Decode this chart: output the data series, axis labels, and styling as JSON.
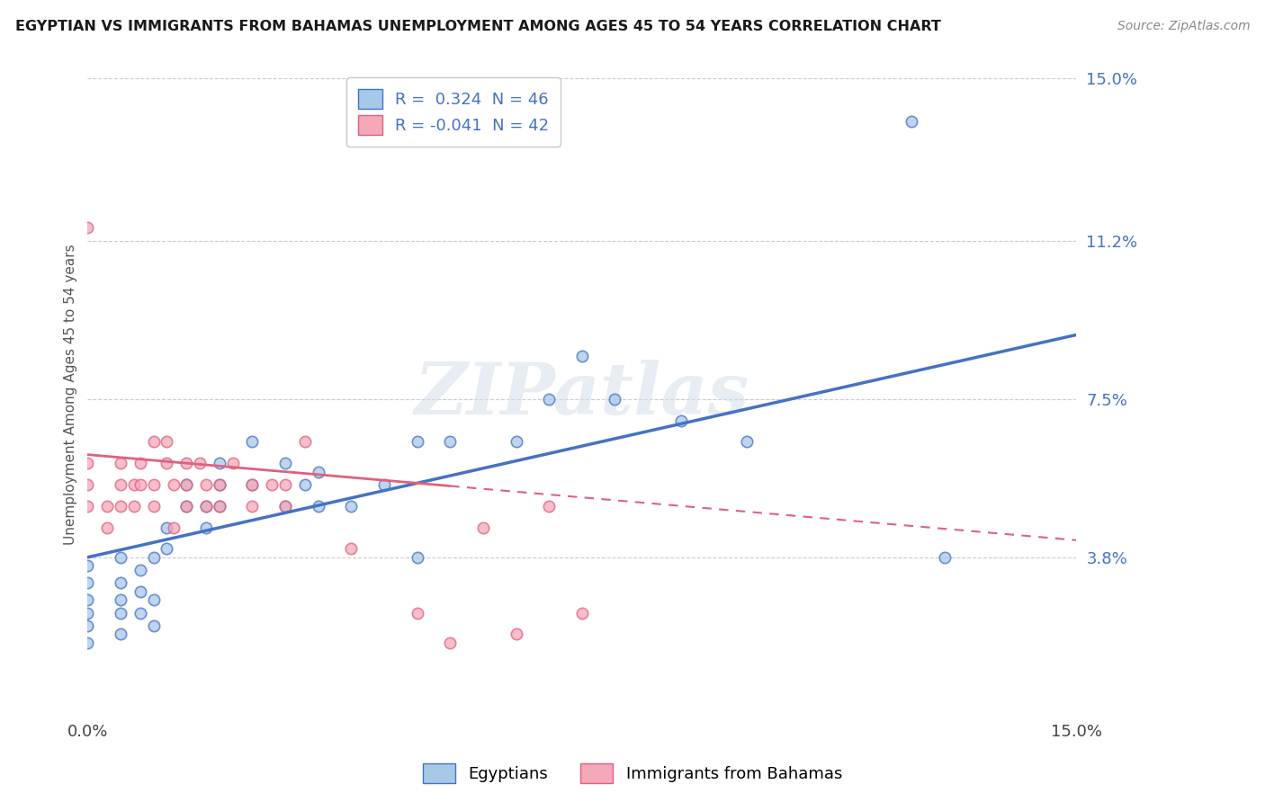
{
  "title": "EGYPTIAN VS IMMIGRANTS FROM BAHAMAS UNEMPLOYMENT AMONG AGES 45 TO 54 YEARS CORRELATION CHART",
  "source": "Source: ZipAtlas.com",
  "ylabel": "Unemployment Among Ages 45 to 54 years",
  "xmin": 0.0,
  "xmax": 0.15,
  "ymin": 0.0,
  "ymax": 0.15,
  "yticks": [
    0.038,
    0.075,
    0.112,
    0.15
  ],
  "ytick_labels": [
    "3.8%",
    "7.5%",
    "11.2%",
    "15.0%"
  ],
  "xticks": [
    0.0,
    0.15
  ],
  "xtick_labels": [
    "0.0%",
    "15.0%"
  ],
  "legend_labels": [
    "Egyptians",
    "Immigrants from Bahamas"
  ],
  "legend_r_values": [
    "R =  0.324  N = 46",
    "R = -0.041  N = 42"
  ],
  "blue_color": "#a8c8e8",
  "pink_color": "#f4a8b8",
  "blue_line_color": "#4472c4",
  "pink_line_color": "#e06080",
  "watermark_text": "ZIPatlas",
  "blue_scatter_x": [
    0.0,
    0.0,
    0.0,
    0.0,
    0.0,
    0.0,
    0.005,
    0.005,
    0.005,
    0.005,
    0.005,
    0.008,
    0.008,
    0.008,
    0.01,
    0.01,
    0.01,
    0.012,
    0.012,
    0.015,
    0.015,
    0.018,
    0.018,
    0.02,
    0.02,
    0.02,
    0.025,
    0.025,
    0.03,
    0.03,
    0.033,
    0.035,
    0.035,
    0.04,
    0.045,
    0.05,
    0.05,
    0.055,
    0.065,
    0.07,
    0.075,
    0.08,
    0.09,
    0.1,
    0.125,
    0.13
  ],
  "blue_scatter_y": [
    0.018,
    0.022,
    0.025,
    0.028,
    0.032,
    0.036,
    0.02,
    0.025,
    0.028,
    0.032,
    0.038,
    0.025,
    0.03,
    0.035,
    0.022,
    0.028,
    0.038,
    0.04,
    0.045,
    0.05,
    0.055,
    0.045,
    0.05,
    0.05,
    0.055,
    0.06,
    0.055,
    0.065,
    0.05,
    0.06,
    0.055,
    0.05,
    0.058,
    0.05,
    0.055,
    0.038,
    0.065,
    0.065,
    0.065,
    0.075,
    0.085,
    0.075,
    0.07,
    0.065,
    0.14,
    0.038
  ],
  "pink_scatter_x": [
    0.0,
    0.0,
    0.0,
    0.0,
    0.003,
    0.003,
    0.005,
    0.005,
    0.005,
    0.007,
    0.007,
    0.008,
    0.008,
    0.01,
    0.01,
    0.01,
    0.012,
    0.012,
    0.013,
    0.013,
    0.015,
    0.015,
    0.015,
    0.017,
    0.018,
    0.018,
    0.02,
    0.02,
    0.022,
    0.025,
    0.025,
    0.028,
    0.03,
    0.03,
    0.033,
    0.04,
    0.05,
    0.055,
    0.06,
    0.065,
    0.07,
    0.075
  ],
  "pink_scatter_y": [
    0.05,
    0.055,
    0.06,
    0.115,
    0.045,
    0.05,
    0.05,
    0.055,
    0.06,
    0.05,
    0.055,
    0.055,
    0.06,
    0.05,
    0.055,
    0.065,
    0.06,
    0.065,
    0.045,
    0.055,
    0.05,
    0.055,
    0.06,
    0.06,
    0.05,
    0.055,
    0.05,
    0.055,
    0.06,
    0.05,
    0.055,
    0.055,
    0.05,
    0.055,
    0.065,
    0.04,
    0.025,
    0.018,
    0.045,
    0.02,
    0.05,
    0.025
  ],
  "blue_trend_x0": 0.0,
  "blue_trend_y0": 0.038,
  "blue_trend_x1": 0.15,
  "blue_trend_y1": 0.09,
  "pink_trend_x0": 0.0,
  "pink_trend_y0": 0.062,
  "pink_trend_x1": 0.15,
  "pink_trend_y1": 0.042
}
